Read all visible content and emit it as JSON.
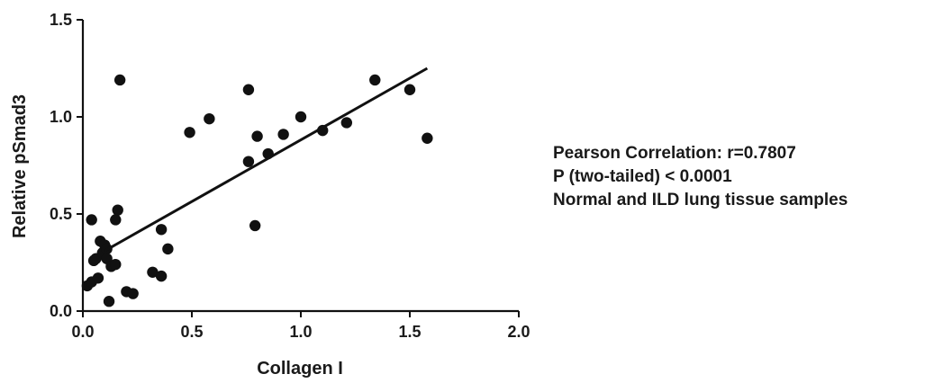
{
  "chart_data": {
    "type": "scatter",
    "title": "",
    "xlabel": "Collagen I",
    "ylabel": "Relative pSmad3",
    "xlim": [
      0.0,
      2.0
    ],
    "ylim": [
      0.0,
      1.5
    ],
    "xticks": [
      "0.0",
      "0.5",
      "1.0",
      "1.5",
      "2.0"
    ],
    "yticks": [
      "0.0",
      "0.5",
      "1.0",
      "1.5"
    ],
    "grid": false,
    "legend": "none",
    "colors": {
      "point": "#111111",
      "line": "#111111",
      "axis": "#111111"
    },
    "series": [
      {
        "points": [
          {
            "x": 0.02,
            "y": 0.13
          },
          {
            "x": 0.04,
            "y": 0.47
          },
          {
            "x": 0.04,
            "y": 0.15
          },
          {
            "x": 0.05,
            "y": 0.26
          },
          {
            "x": 0.06,
            "y": 0.27
          },
          {
            "x": 0.07,
            "y": 0.17
          },
          {
            "x": 0.08,
            "y": 0.36
          },
          {
            "x": 0.09,
            "y": 0.3
          },
          {
            "x": 0.1,
            "y": 0.34
          },
          {
            "x": 0.11,
            "y": 0.32
          },
          {
            "x": 0.11,
            "y": 0.27
          },
          {
            "x": 0.12,
            "y": 0.05
          },
          {
            "x": 0.13,
            "y": 0.23
          },
          {
            "x": 0.15,
            "y": 0.24
          },
          {
            "x": 0.15,
            "y": 0.47
          },
          {
            "x": 0.16,
            "y": 0.52
          },
          {
            "x": 0.17,
            "y": 1.19
          },
          {
            "x": 0.2,
            "y": 0.1
          },
          {
            "x": 0.23,
            "y": 0.09
          },
          {
            "x": 0.32,
            "y": 0.2
          },
          {
            "x": 0.36,
            "y": 0.18
          },
          {
            "x": 0.36,
            "y": 0.42
          },
          {
            "x": 0.39,
            "y": 0.32
          },
          {
            "x": 0.49,
            "y": 0.92
          },
          {
            "x": 0.58,
            "y": 0.99
          },
          {
            "x": 0.76,
            "y": 1.14
          },
          {
            "x": 0.76,
            "y": 0.77
          },
          {
            "x": 0.79,
            "y": 0.44
          },
          {
            "x": 0.8,
            "y": 0.9
          },
          {
            "x": 0.85,
            "y": 0.81
          },
          {
            "x": 0.92,
            "y": 0.91
          },
          {
            "x": 1.0,
            "y": 1.0
          },
          {
            "x": 1.1,
            "y": 0.93
          },
          {
            "x": 1.21,
            "y": 0.97
          },
          {
            "x": 1.34,
            "y": 1.19
          },
          {
            "x": 1.5,
            "y": 1.14
          },
          {
            "x": 1.58,
            "y": 0.89
          }
        ]
      }
    ],
    "regression_line": {
      "x": [
        0.1,
        1.58
      ],
      "y": [
        0.31,
        1.25
      ]
    }
  },
  "annotations": [
    "Pearson Correlation:  r=0.7807",
    "P (two-tailed) < 0.0001",
    "Normal and ILD lung tissue samples"
  ]
}
